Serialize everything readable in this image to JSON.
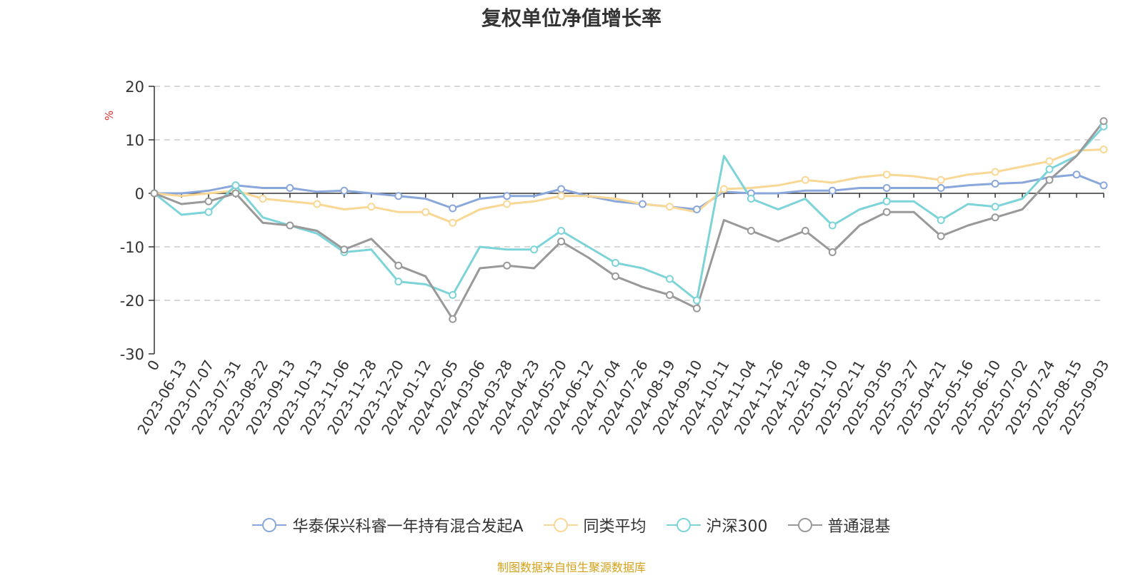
{
  "page": {
    "title": "复权单位净值增长率",
    "source": "制图数据来自恒生聚源数据库"
  },
  "colors": {
    "fund": "#8aa7dc",
    "peer": "#f9d794",
    "csi300": "#7dd4d8",
    "mixed": "#999999",
    "grid": "#cccccc",
    "axis": "#333333",
    "unit": "#e03030",
    "source": "#d4a017"
  },
  "chart_data": {
    "type": "line",
    "title": "复权单位净值增长率",
    "ylabel": "%",
    "ylim": [
      -30,
      20
    ],
    "yticks": [
      20,
      10,
      0,
      -10,
      -20,
      -30
    ],
    "grid": true,
    "legend_position": "bottom-center",
    "categories": [
      "0",
      "2023-06-13",
      "2023-07-07",
      "2023-07-31",
      "2023-08-22",
      "2023-09-13",
      "2023-10-13",
      "2023-11-06",
      "2023-11-28",
      "2023-12-20",
      "2024-01-12",
      "2024-02-05",
      "2024-03-06",
      "2024-03-28",
      "2024-04-23",
      "2024-05-20",
      "2024-06-12",
      "2024-07-04",
      "2024-07-26",
      "2024-08-19",
      "2024-09-10",
      "2024-10-11",
      "2024-11-04",
      "2024-11-26",
      "2024-12-18",
      "2025-01-10",
      "2025-02-11",
      "2025-03-05",
      "2025-03-27",
      "2025-04-21",
      "2025-05-16",
      "2025-06-10",
      "2025-07-02",
      "2025-07-24",
      "2025-08-15",
      "2025-09-03"
    ],
    "series": [
      {
        "name": "华泰保兴科睿一年持有混合发起A",
        "color_key": "fund",
        "values": [
          0,
          0,
          0.5,
          1.5,
          1.0,
          1.0,
          0.3,
          0.5,
          0,
          -0.5,
          -1.0,
          -2.8,
          -1.0,
          -0.5,
          -0.5,
          0.8,
          -0.5,
          -1.5,
          -2.0,
          -2.5,
          -3.0,
          0.3,
          0,
          0,
          0.5,
          0.5,
          1.0,
          1.0,
          1.0,
          1.0,
          1.5,
          1.8,
          2.0,
          3.0,
          3.5,
          1.5
        ],
        "markers": [
          0,
          3,
          5,
          7,
          9,
          11,
          13,
          15,
          18,
          20,
          22,
          25,
          27,
          29,
          31,
          34,
          35
        ]
      },
      {
        "name": "同类平均",
        "color_key": "peer",
        "values": [
          0,
          -0.5,
          0,
          0.5,
          -1.0,
          -1.5,
          -2.0,
          -3.0,
          -2.5,
          -3.5,
          -3.5,
          -5.5,
          -3.0,
          -2.0,
          -1.5,
          -0.5,
          -0.5,
          -1.0,
          -2.0,
          -2.5,
          -3.5,
          0.8,
          1.0,
          1.5,
          2.5,
          2.0,
          3.0,
          3.5,
          3.2,
          2.5,
          3.5,
          4.0,
          5.0,
          6.0,
          8.0,
          8.2
        ],
        "markers": [
          0,
          4,
          6,
          8,
          10,
          11,
          13,
          15,
          19,
          21,
          24,
          27,
          29,
          31,
          33,
          35
        ]
      },
      {
        "name": "沪深300",
        "color_key": "csi300",
        "values": [
          0,
          -4.0,
          -3.5,
          1.5,
          -4.5,
          -6.0,
          -7.5,
          -11.0,
          -10.5,
          -16.5,
          -17.0,
          -19.0,
          -10.0,
          -10.5,
          -10.5,
          -7.0,
          -10.0,
          -13.0,
          -14.0,
          -16.0,
          -20.0,
          7.0,
          -1.0,
          -3.0,
          -1.0,
          -6.0,
          -3.0,
          -1.5,
          -1.5,
          -5.0,
          -2.0,
          -2.5,
          -1.0,
          4.5,
          7.0,
          12.5
        ],
        "markers": [
          0,
          2,
          3,
          7,
          9,
          11,
          14,
          15,
          17,
          19,
          20,
          22,
          25,
          27,
          29,
          31,
          33,
          35
        ]
      },
      {
        "name": "普通混基",
        "color_key": "mixed",
        "values": [
          0,
          -2.0,
          -1.5,
          0,
          -5.5,
          -6.0,
          -7.0,
          -10.5,
          -8.5,
          -13.5,
          -15.5,
          -23.5,
          -14.0,
          -13.5,
          -14.0,
          -9.0,
          -12.0,
          -15.5,
          -17.5,
          -19.0,
          -21.5,
          -5.0,
          -7.0,
          -9.0,
          -7.0,
          -11.0,
          -6.0,
          -3.5,
          -3.5,
          -8.0,
          -6.0,
          -4.5,
          -3.0,
          2.5,
          7.0,
          13.5
        ],
        "markers": [
          0,
          2,
          3,
          5,
          7,
          9,
          11,
          13,
          15,
          17,
          19,
          20,
          22,
          24,
          25,
          27,
          29,
          31,
          33,
          35
        ]
      }
    ]
  }
}
